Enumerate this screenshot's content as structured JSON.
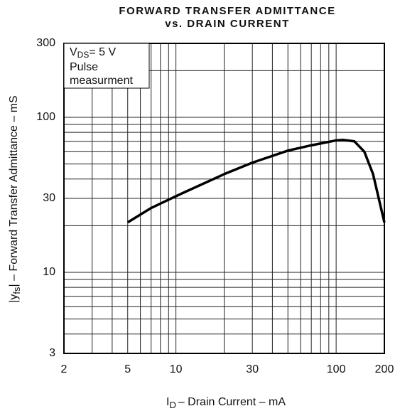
{
  "chart_data": {
    "type": "line",
    "title": [
      "FORWARD TRANSFER ADMITTANCE",
      "vs. DRAIN CURRENT"
    ],
    "xlabel": {
      "main": "I",
      "sub": "D",
      "rest": "– Drain Current – mA"
    },
    "ylabel": {
      "pre": "|y",
      "sub": "fs",
      "rest": "| – Forward Transfer Admittance – mS"
    },
    "annotation": {
      "main": "V",
      "sub": "DS",
      "rest": "= 5 V",
      "lines": [
        "Pulse",
        "measurment"
      ]
    },
    "xscale": "log",
    "yscale": "log",
    "xlim": [
      2,
      200
    ],
    "ylim": [
      3,
      300
    ],
    "xticks": [
      2,
      5,
      10,
      30,
      100,
      200
    ],
    "yticks": [
      3,
      10,
      30,
      100,
      300
    ],
    "x_minor_ticks": [
      3,
      4,
      6,
      7,
      8,
      9,
      20,
      40,
      50,
      60,
      70,
      80,
      90
    ],
    "y_minor_ticks": [
      4,
      5,
      6,
      7,
      8,
      9,
      20,
      40,
      50,
      60,
      70,
      80,
      90,
      200
    ],
    "grid": true,
    "series": [
      {
        "color": "#000000",
        "x": [
          5,
          7,
          10,
          20,
          30,
          50,
          70,
          100,
          110,
          130,
          150,
          170,
          200
        ],
        "values": [
          21,
          26,
          31,
          43,
          51,
          61,
          66,
          71,
          71.5,
          70,
          60,
          43,
          21
        ]
      }
    ]
  }
}
